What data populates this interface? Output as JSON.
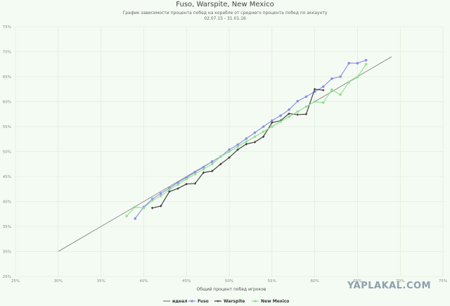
{
  "chart_data": {
    "type": "line",
    "title": "Fuso, Warspite, New Mexico",
    "subtitle": "График зависимости процента побед на корабле от среднего процента побед по аккаунту",
    "date_range": "02.07.15 - 31.01.16",
    "xlabel": "Общий процент побед игроков",
    "ylabel": "",
    "xlim": [
      25,
      75
    ],
    "ylim": [
      25,
      75
    ],
    "x_ticks": [
      "25%",
      "30%",
      "35%",
      "40%",
      "45%",
      "50%",
      "55%",
      "60%",
      "65%",
      "70%",
      "75%"
    ],
    "y_ticks": [
      "25%",
      "30%",
      "35%",
      "40%",
      "45%",
      "50%",
      "55%",
      "60%",
      "65%",
      "70%",
      "75%"
    ],
    "grid": true,
    "legend_position": "bottom",
    "series": [
      {
        "name": "идеал",
        "color": "#777777",
        "marker": false,
        "points": [
          [
            30,
            30
          ],
          [
            69,
            69
          ]
        ]
      },
      {
        "name": "Fuso",
        "color": "#8c8ce8",
        "marker": true,
        "points": [
          [
            39,
            36.6
          ],
          [
            40,
            38.9
          ],
          [
            41,
            40.5
          ],
          [
            42,
            41.6
          ],
          [
            43,
            42.7
          ],
          [
            44,
            43.8
          ],
          [
            45,
            44.8
          ],
          [
            46,
            45.9
          ],
          [
            47,
            46.9
          ],
          [
            48,
            48
          ],
          [
            49,
            49
          ],
          [
            50,
            50.4
          ],
          [
            51,
            51.4
          ],
          [
            52,
            52.6
          ],
          [
            53,
            53.8
          ],
          [
            54,
            55
          ],
          [
            55,
            56.2
          ],
          [
            56,
            57.2
          ],
          [
            57,
            58.4
          ],
          [
            58,
            60.1
          ],
          [
            59,
            61
          ],
          [
            60,
            62
          ],
          [
            61,
            63
          ],
          [
            62,
            64.6
          ],
          [
            63,
            65
          ],
          [
            64,
            67.7
          ],
          [
            65,
            67.7
          ],
          [
            66,
            68.3
          ]
        ]
      },
      {
        "name": "Warspite",
        "color": "#333333",
        "marker": true,
        "points": [
          [
            41,
            38.7
          ],
          [
            42,
            39.1
          ],
          [
            43,
            42
          ],
          [
            44,
            42.6
          ],
          [
            45,
            43.5
          ],
          [
            46,
            43.6
          ],
          [
            47,
            45.8
          ],
          [
            48,
            46.1
          ],
          [
            49,
            47.5
          ],
          [
            50,
            48.8
          ],
          [
            51,
            50.4
          ],
          [
            52,
            51.5
          ],
          [
            53,
            51.9
          ],
          [
            54,
            53
          ],
          [
            55,
            55.8
          ],
          [
            56,
            56.2
          ],
          [
            57,
            57.6
          ],
          [
            58,
            57.4
          ],
          [
            59,
            57.5
          ],
          [
            60,
            62.5
          ],
          [
            61,
            62.3
          ]
        ]
      },
      {
        "name": "New Mexico",
        "color": "#8ee08e",
        "marker": true,
        "points": [
          [
            38,
            37.1
          ],
          [
            39,
            38.9
          ],
          [
            40,
            38.7
          ],
          [
            41,
            40.2
          ],
          [
            42,
            41.1
          ],
          [
            43,
            42.4
          ],
          [
            44,
            43.4
          ],
          [
            45,
            44.5
          ],
          [
            46,
            45.5
          ],
          [
            47,
            46.5
          ],
          [
            48,
            47.5
          ],
          [
            49,
            49
          ],
          [
            50,
            50
          ],
          [
            51,
            51
          ],
          [
            52,
            52
          ],
          [
            53,
            53
          ],
          [
            54,
            54
          ],
          [
            55,
            55
          ],
          [
            56,
            56
          ],
          [
            57,
            57
          ],
          [
            58,
            58
          ],
          [
            59,
            59
          ],
          [
            60,
            60
          ],
          [
            61,
            59.8
          ],
          [
            62,
            62.4
          ],
          [
            63,
            61.4
          ],
          [
            64,
            63.9
          ],
          [
            65,
            64.9
          ],
          [
            66,
            67.5
          ]
        ]
      }
    ]
  },
  "watermark": "YAPLAKAL.COM"
}
